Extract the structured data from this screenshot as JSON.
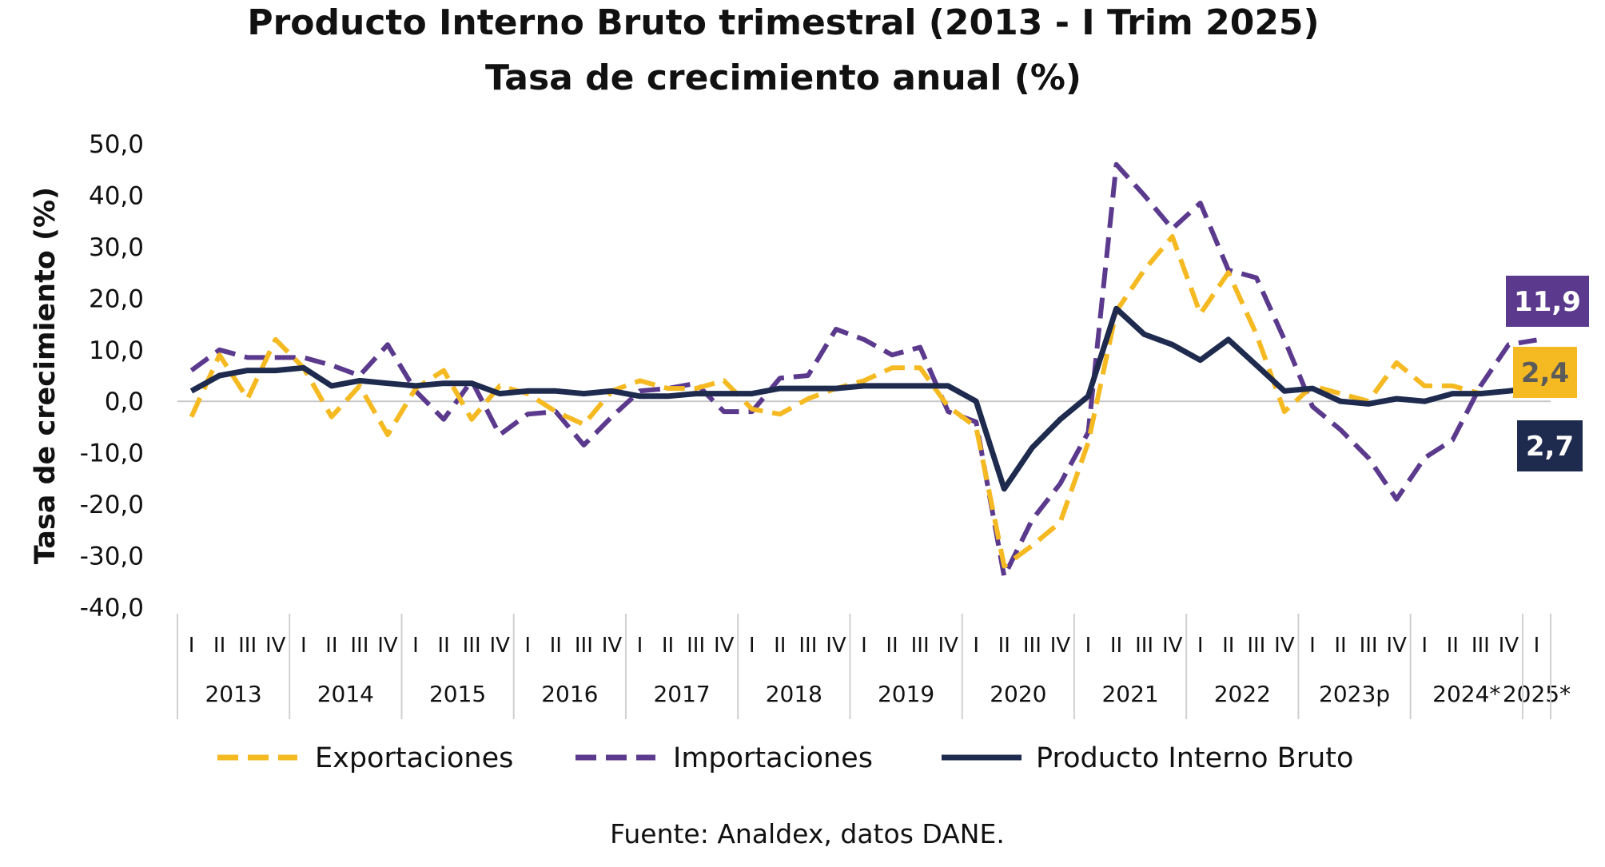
{
  "chart_data": {
    "type": "line",
    "title": "Producto Interno Bruto trimestral (2013 - I Trim 2025)",
    "subtitle": "Tasa de crecimiento anual (%)",
    "ylabel": "Tasa de crecimiento (%)",
    "ylim": [
      -40,
      50
    ],
    "yticks": [
      "50,0",
      "40,0",
      "30,0",
      "20,0",
      "10,0",
      "0,0",
      "-10,0",
      "-20,0",
      "-30,0",
      "-40,0"
    ],
    "ytick_values": [
      50,
      40,
      30,
      20,
      10,
      0,
      -10,
      -20,
      -30,
      -40
    ],
    "quarter_labels": [
      "I",
      "II",
      "III",
      "IV",
      "I",
      "II",
      "III",
      "IV",
      "I",
      "II",
      "III",
      "IV",
      "I",
      "II",
      "III",
      "IV",
      "I",
      "II",
      "III",
      "IV",
      "I",
      "II",
      "III",
      "IV",
      "I",
      "II",
      "III",
      "IV",
      "I",
      "II",
      "III",
      "IV",
      "I",
      "II",
      "III",
      "IV",
      "I",
      "II",
      "III",
      "IV",
      "I",
      "II",
      "III",
      "IV",
      "I",
      "II",
      "III",
      "IV",
      "I"
    ],
    "year_groups": [
      {
        "label": "2013",
        "quarters": 4
      },
      {
        "label": "2014",
        "quarters": 4
      },
      {
        "label": "2015",
        "quarters": 4
      },
      {
        "label": "2016",
        "quarters": 4
      },
      {
        "label": "2017",
        "quarters": 4
      },
      {
        "label": "2018",
        "quarters": 4
      },
      {
        "label": "2019",
        "quarters": 4
      },
      {
        "label": "2020",
        "quarters": 4
      },
      {
        "label": "2021",
        "quarters": 4
      },
      {
        "label": "2022",
        "quarters": 4
      },
      {
        "label": "2023p",
        "quarters": 4
      },
      {
        "label": "2024*",
        "quarters": 4
      },
      {
        "label": "2025*",
        "quarters": 1
      }
    ],
    "series": [
      {
        "name": "Exportaciones",
        "color": "#f5b921",
        "style": "dashed",
        "values": [
          -3.0,
          9.0,
          0.5,
          12.0,
          6.5,
          -3.0,
          3.0,
          -6.5,
          2.5,
          6.0,
          -3.5,
          3.0,
          1.5,
          -2.0,
          -4.5,
          2.0,
          4.0,
          2.5,
          2.5,
          4.0,
          -1.5,
          -2.5,
          0.5,
          2.5,
          4.0,
          6.5,
          6.5,
          -1.0,
          -5.0,
          -32.0,
          -28.0,
          -23.5,
          -8.0,
          17.5,
          25.5,
          32.0,
          17.0,
          25.0,
          13.0,
          -2.0,
          3.0,
          1.5,
          0.0,
          7.5,
          3.0,
          3.0,
          1.5,
          2.0,
          2.4
        ]
      },
      {
        "name": "Importaciones",
        "color": "#5b3a8e",
        "style": "dashed",
        "values": [
          6.0,
          10.0,
          8.5,
          8.5,
          8.5,
          7.0,
          5.0,
          11.0,
          2.0,
          -3.5,
          4.0,
          -6.5,
          -2.5,
          -2.0,
          -8.5,
          -3.0,
          2.0,
          2.5,
          3.5,
          -2.0,
          -2.0,
          4.5,
          5.0,
          14.0,
          12.0,
          9.0,
          10.5,
          -2.0,
          -4.0,
          -34.0,
          -23.0,
          -16.0,
          -6.0,
          46.0,
          40.0,
          33.5,
          38.5,
          25.5,
          24.0,
          12.0,
          -1.0,
          -5.5,
          -11.0,
          -19.0,
          -11.0,
          -7.5,
          3.0,
          11.0,
          11.9
        ]
      },
      {
        "name": "Producto Interno Bruto",
        "color": "#1e2a4e",
        "style": "solid",
        "values": [
          2.0,
          5.0,
          6.0,
          6.0,
          6.5,
          3.0,
          4.0,
          3.5,
          3.0,
          3.5,
          3.5,
          1.5,
          2.0,
          2.0,
          1.5,
          2.0,
          1.0,
          1.0,
          1.5,
          1.5,
          1.5,
          2.5,
          2.5,
          2.5,
          3.0,
          3.0,
          3.0,
          3.0,
          0.0,
          -17.0,
          -9.0,
          -3.5,
          1.0,
          18.0,
          13.0,
          11.0,
          8.0,
          12.0,
          7.0,
          2.0,
          2.5,
          0.0,
          -0.5,
          0.5,
          0.0,
          1.5,
          1.5,
          2.0,
          2.7
        ]
      }
    ],
    "end_labels": [
      {
        "series": "Importaciones",
        "text": "11,9",
        "bg": "#5b3a8e",
        "fg": "#ffffff"
      },
      {
        "series": "Exportaciones",
        "text": "2,4",
        "bg": "#f5b921",
        "fg": "#5b5b5b"
      },
      {
        "series": "Producto Interno Bruto",
        "text": "2,7",
        "bg": "#1e2a4e",
        "fg": "#ffffff"
      }
    ],
    "legend_position": "bottom",
    "grid": false,
    "zero_line": true
  },
  "source": "Fuente: Analdex, datos DANE."
}
